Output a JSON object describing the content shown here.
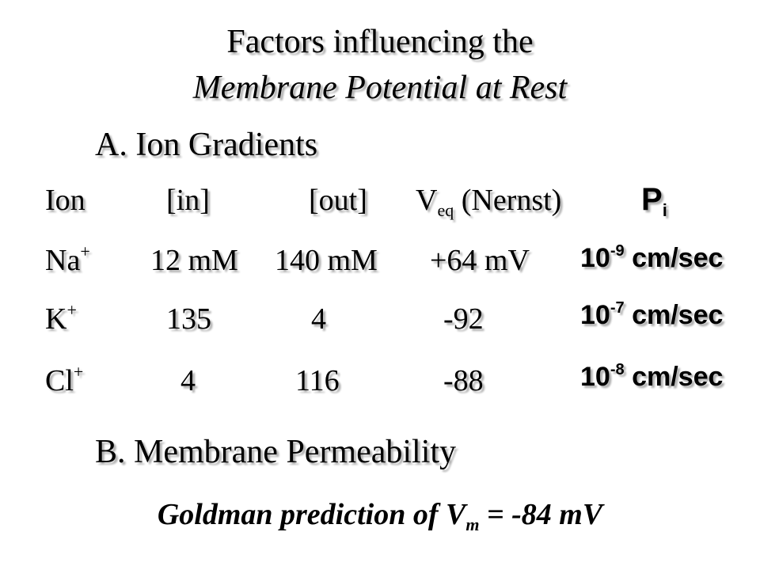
{
  "title": {
    "line1": "Factors influencing the",
    "line2": "Membrane Potential at Rest"
  },
  "section_a": "A. Ion Gradients",
  "section_b": "B. Membrane Permeability",
  "table": {
    "headers": {
      "ion": "Ion",
      "in": "[in]",
      "out": "[out]",
      "veq_main": "V",
      "veq_sub": "eq",
      "veq_rest": " (Nernst)",
      "pi_main": "P",
      "pi_sub": "i"
    },
    "rows": [
      {
        "ion": "Na",
        "charge": "+",
        "in": "12 mM",
        "out": "140 mM",
        "veq": "+64 mV",
        "perm_base": "10",
        "perm_exp": "-9",
        "perm_unit": " cm/sec"
      },
      {
        "ion": "K",
        "charge": "+",
        "in": "135",
        "out": "4",
        "veq": "-92",
        "perm_base": "10",
        "perm_exp": "-7",
        "perm_unit": " cm/sec"
      },
      {
        "ion": "Cl",
        "charge": "+",
        "in": "4",
        "out": "116",
        "veq": "-88",
        "perm_base": "10",
        "perm_exp": "-8",
        "perm_unit": " cm/sec"
      }
    ]
  },
  "goldman": {
    "prefix": "Goldman prediction of V",
    "sub": "m",
    "suffix": " = -84 mV"
  }
}
